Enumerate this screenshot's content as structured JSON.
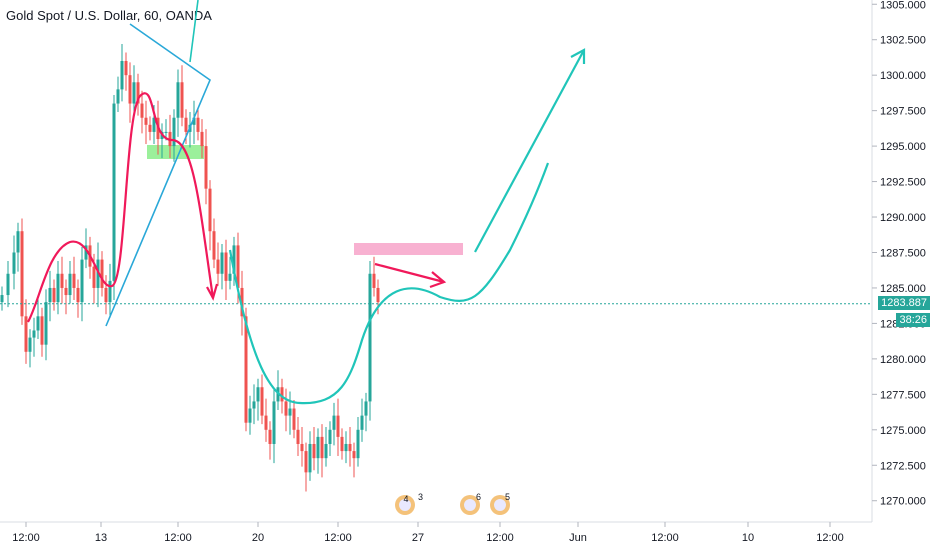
{
  "chart_data": {
    "type": "candlestick",
    "title": "Gold Spot / U.S. Dollar, 60, OANDA",
    "y_ticks": [
      "1305.000",
      "1302.500",
      "1300.000",
      "1297.500",
      "1295.000",
      "1292.500",
      "1290.000",
      "1287.500",
      "1285.000",
      "1282.500",
      "1280.000",
      "1277.500",
      "1275.000",
      "1272.500",
      "1270.000"
    ],
    "y_tick_values": [
      1305.0,
      1302.5,
      1300.0,
      1297.5,
      1295.0,
      1292.5,
      1290.0,
      1287.5,
      1285.0,
      1282.5,
      1280.0,
      1277.5,
      1275.0,
      1272.5,
      1270.0
    ],
    "x_ticks": [
      "12:00",
      "13",
      "12:00",
      "20",
      "12:00",
      "27",
      "12:00",
      "Jun",
      "12:00",
      "10",
      "12:00"
    ],
    "ylim": [
      1268.5,
      1305.3
    ],
    "current_price": "1283.887",
    "current_price_value": 1283.887,
    "countdown": "38:26",
    "event_badges": [
      "4",
      "3",
      "6",
      "5"
    ],
    "colors": {
      "up": "#26a69a",
      "down": "#ef5350",
      "drawing_red": "#f0195a",
      "drawing_teal": "#20c5b9",
      "drawing_blue": "#2aa8d8",
      "green_zone": "#90ee90",
      "pink_zone": "#f7a8cc",
      "price_line": "#26a69a"
    },
    "grid": false
  }
}
